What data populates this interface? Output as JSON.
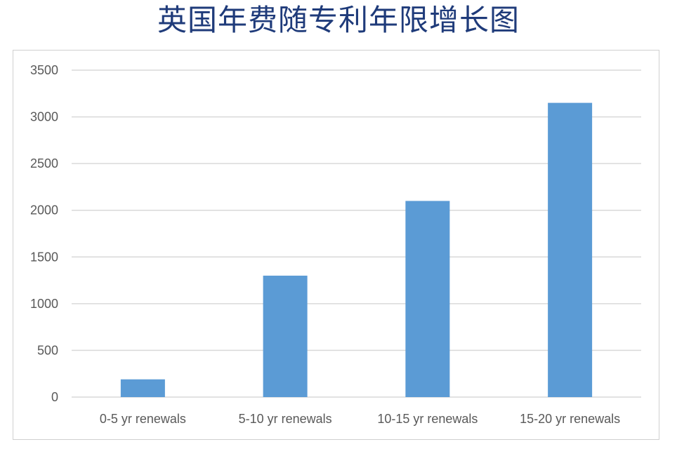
{
  "chart_data": {
    "type": "bar",
    "title": "英国年费随专利年限增长图",
    "categories": [
      "0-5 yr renewals",
      "5-10 yr renewals",
      "10-15 yr renewals",
      "15-20 yr renewals"
    ],
    "values": [
      190,
      1300,
      2100,
      3150
    ],
    "ylim": [
      0,
      3500
    ],
    "yticks": [
      0,
      500,
      1000,
      1500,
      2000,
      2500,
      3000,
      3500
    ],
    "grid": true,
    "legend": "none",
    "colors": {
      "bar": "#5b9bd5",
      "grid": "#d9d9d9",
      "title": "#1f3b7a",
      "tick": "#595959"
    }
  }
}
